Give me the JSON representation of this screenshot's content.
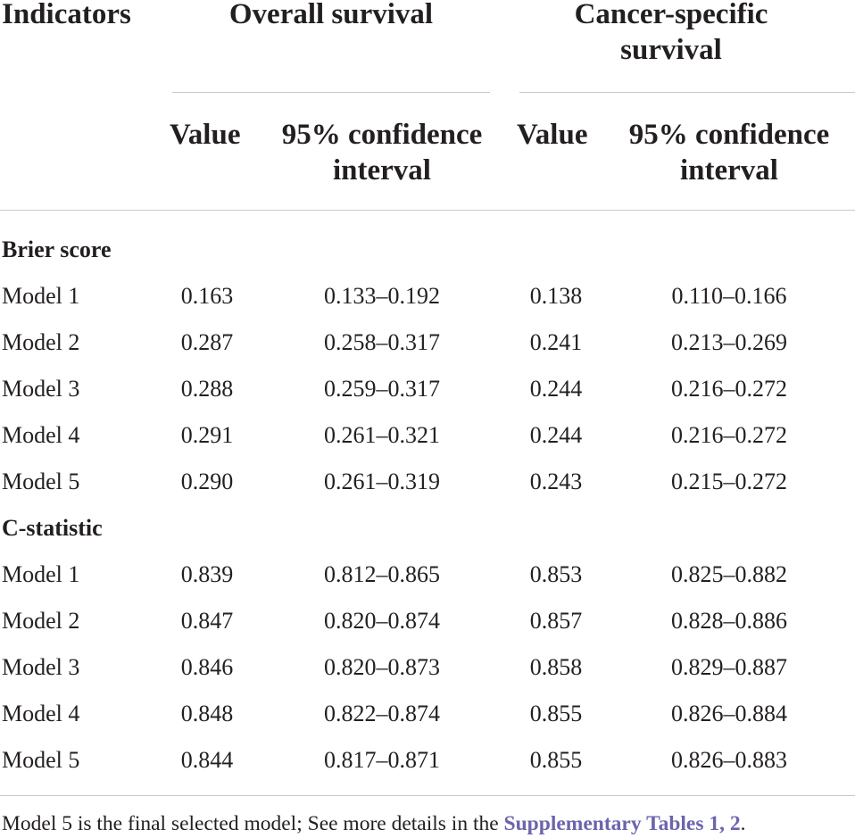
{
  "table": {
    "header": {
      "indicators": "Indicators",
      "overall_survival": "Overall survival",
      "cancer_specific_line1": "Cancer-specific",
      "cancer_specific_line2": "survival",
      "value": "Value",
      "ci_line1": "95% confidence",
      "ci_line2": "interval"
    },
    "groups": [
      {
        "title": "Brier score",
        "rows": [
          {
            "label": "Model 1",
            "os_value": "0.163",
            "os_ci": "0.133–0.192",
            "css_value": "0.138",
            "css_ci": "0.110–0.166"
          },
          {
            "label": "Model 2",
            "os_value": "0.287",
            "os_ci": "0.258–0.317",
            "css_value": "0.241",
            "css_ci": "0.213–0.269"
          },
          {
            "label": "Model 3",
            "os_value": "0.288",
            "os_ci": "0.259–0.317",
            "css_value": "0.244",
            "css_ci": "0.216–0.272"
          },
          {
            "label": "Model 4",
            "os_value": "0.291",
            "os_ci": "0.261–0.321",
            "css_value": "0.244",
            "css_ci": "0.216–0.272"
          },
          {
            "label": "Model 5",
            "os_value": "0.290",
            "os_ci": "0.261–0.319",
            "css_value": "0.243",
            "css_ci": "0.215–0.272"
          }
        ]
      },
      {
        "title": "C-statistic",
        "rows": [
          {
            "label": "Model 1",
            "os_value": "0.839",
            "os_ci": "0.812–0.865",
            "css_value": "0.853",
            "css_ci": "0.825–0.882"
          },
          {
            "label": "Model 2",
            "os_value": "0.847",
            "os_ci": "0.820–0.874",
            "css_value": "0.857",
            "css_ci": "0.828–0.886"
          },
          {
            "label": "Model 3",
            "os_value": "0.846",
            "os_ci": "0.820–0.873",
            "css_value": "0.858",
            "css_ci": "0.829–0.887"
          },
          {
            "label": "Model 4",
            "os_value": "0.848",
            "os_ci": "0.822–0.874",
            "css_value": "0.855",
            "css_ci": "0.826–0.884"
          },
          {
            "label": "Model 5",
            "os_value": "0.844",
            "os_ci": "0.817–0.871",
            "css_value": "0.855",
            "css_ci": "0.826–0.883"
          }
        ]
      }
    ]
  },
  "footnote": {
    "text": "Model 5 is the final selected model; See more details in the ",
    "link": "Supplementary Tables 1, 2",
    "end": "."
  },
  "colors": {
    "text": "#231f20",
    "rule": "#c8c8c8",
    "link": "#6b64ad"
  }
}
